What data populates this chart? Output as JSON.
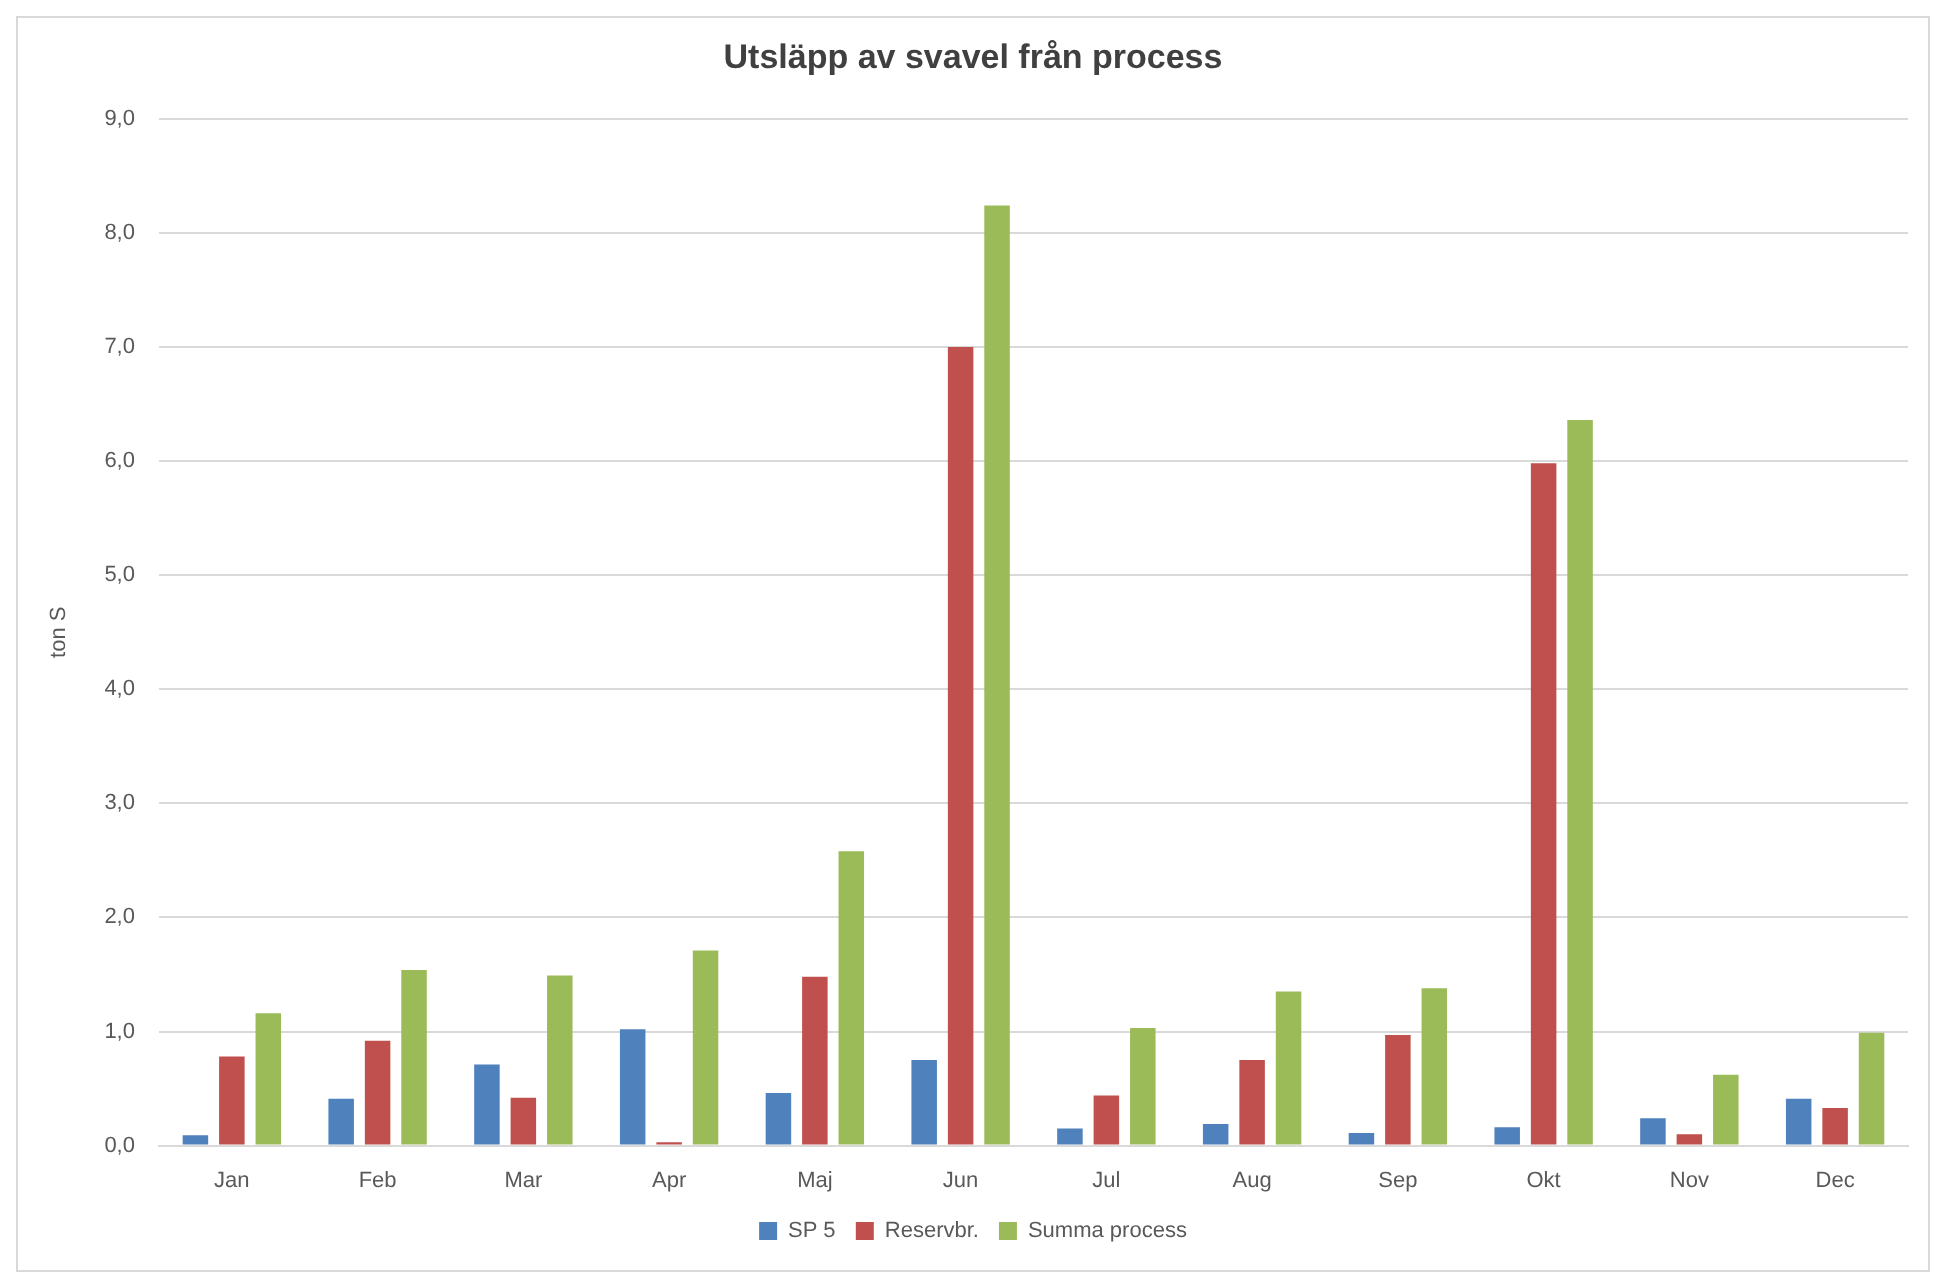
{
  "chart_data": {
    "type": "bar",
    "title": "Utsläpp av svavel från process",
    "ylabel": "ton S",
    "categories": [
      "Jan",
      "Feb",
      "Mar",
      "Apr",
      "Maj",
      "Jun",
      "Jul",
      "Aug",
      "Sep",
      "Okt",
      "Nov",
      "Dec"
    ],
    "series": [
      {
        "name": "SP 5",
        "color": "#4f81bd",
        "values": [
          0.09,
          0.41,
          0.71,
          1.02,
          0.46,
          0.75,
          0.15,
          0.19,
          0.11,
          0.16,
          0.24,
          0.41
        ]
      },
      {
        "name": "Reservbr.",
        "color": "#c0504d",
        "values": [
          0.78,
          0.92,
          0.42,
          0.03,
          1.48,
          7.0,
          0.44,
          0.75,
          0.97,
          5.98,
          0.1,
          0.33
        ]
      },
      {
        "name": "Summa process",
        "color": "#9bbb59",
        "values": [
          1.16,
          1.54,
          1.49,
          1.71,
          2.58,
          8.24,
          1.03,
          1.35,
          1.38,
          6.36,
          0.62,
          0.99
        ]
      }
    ],
    "ylim": [
      0,
      9
    ],
    "yticks": [
      {
        "value": 0,
        "label": "0,0"
      },
      {
        "value": 1,
        "label": "1,0"
      },
      {
        "value": 2,
        "label": "2,0"
      },
      {
        "value": 3,
        "label": "3,0"
      },
      {
        "value": 4,
        "label": "4,0"
      },
      {
        "value": 5,
        "label": "5,0"
      },
      {
        "value": 6,
        "label": "6,0"
      },
      {
        "value": 7,
        "label": "7,0"
      },
      {
        "value": 8,
        "label": "8,0"
      },
      {
        "value": 9,
        "label": "9,0"
      }
    ],
    "grid": "y",
    "legend": "bottom"
  }
}
